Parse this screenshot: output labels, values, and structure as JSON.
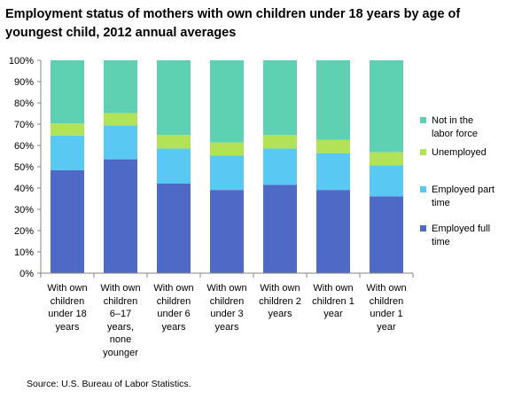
{
  "chart_data": {
    "type": "bar",
    "stacked": true,
    "title": "Employment status of mothers with own children under 18 years by age of youngest child, 2012 annual averages",
    "title_lines": [
      "Employment status of mothers with own children under 18 years by age of",
      "youngest child, 2012 annual averages"
    ],
    "categories": [
      [
        "With own",
        "children",
        "under 18",
        "years"
      ],
      [
        "With own",
        "children",
        "6–17",
        "years,",
        "none",
        "younger"
      ],
      [
        "With own",
        "children",
        "under 6",
        "years"
      ],
      [
        "With own",
        "children",
        "under 3",
        "years"
      ],
      [
        "With own",
        "children 2",
        "years"
      ],
      [
        "With own",
        "children 1",
        "year"
      ],
      [
        "With own",
        "children",
        "under 1",
        "year"
      ]
    ],
    "series": [
      {
        "name": "Employed full time",
        "legend_lines": [
          "Employed full",
          "time"
        ],
        "color": "#4F69C6",
        "values": [
          48.4,
          53.5,
          42.1,
          39.1,
          41.5,
          39.1,
          36.1
        ]
      },
      {
        "name": "Employed part time",
        "legend_lines": [
          "Employed part",
          "time"
        ],
        "color": "#59C8F2",
        "values": [
          16.3,
          15.9,
          16.5,
          16.1,
          17.1,
          17.3,
          14.6
        ]
      },
      {
        "name": "Unemployed",
        "legend_lines": [
          "Unemployed"
        ],
        "color": "#B2E356",
        "values": [
          5.6,
          5.8,
          6.4,
          6.2,
          6.3,
          6.3,
          6.1
        ]
      },
      {
        "name": "Not in the labor force",
        "legend_lines": [
          "Not in the",
          "labor force"
        ],
        "color": "#5ED1B3",
        "values": [
          29.7,
          24.8,
          35.0,
          38.6,
          35.1,
          37.3,
          43.2
        ]
      }
    ],
    "yticks": [
      "0%",
      "10%",
      "20%",
      "30%",
      "40%",
      "50%",
      "60%",
      "70%",
      "80%",
      "90%",
      "100%"
    ],
    "ylim": [
      0,
      100
    ],
    "xlabel": "",
    "ylabel": "",
    "grid": false,
    "legend": "right"
  },
  "source": "Source: U.S. Bureau of Labor Statistics."
}
